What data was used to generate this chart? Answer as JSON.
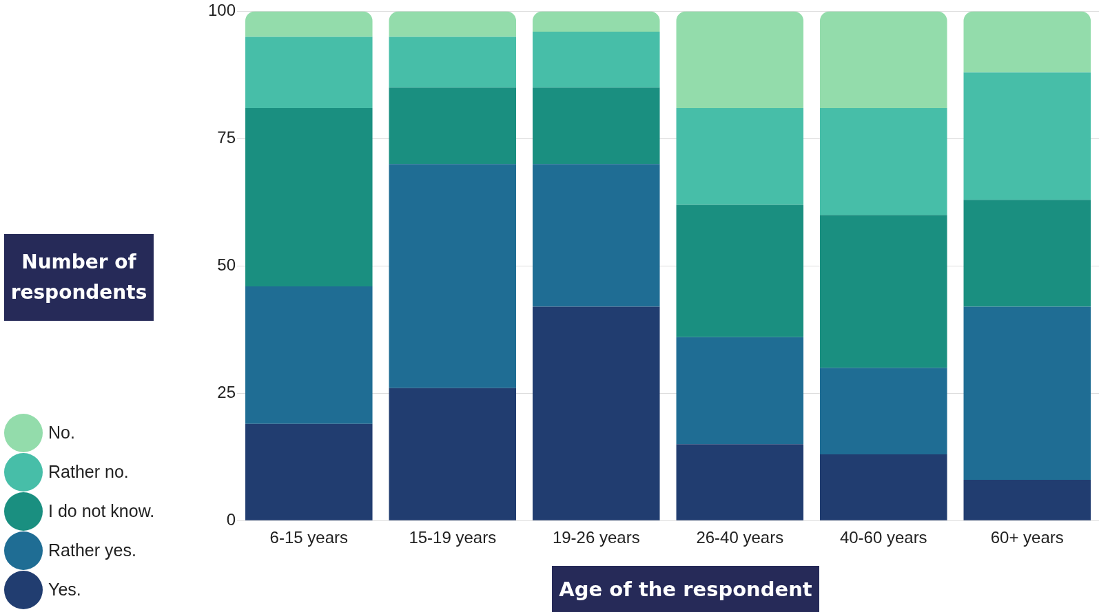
{
  "chart_data": {
    "type": "bar",
    "stacked": true,
    "xlabel": "Age of the respondent",
    "ylabel": "Number of respondents",
    "categories": [
      "6-15 years",
      "15-19 years",
      "19-26 years",
      "26-40 years",
      "40-60 years",
      "60+ years"
    ],
    "series": [
      {
        "name": "Yes.",
        "color": "#213d70",
        "values": [
          19,
          26,
          42,
          15,
          13,
          8
        ]
      },
      {
        "name": "Rather yes.",
        "color": "#1f6d94",
        "values": [
          27,
          44,
          28,
          21,
          17,
          34
        ]
      },
      {
        "name": "I do not know.",
        "color": "#1a8f80",
        "values": [
          35,
          15,
          15,
          26,
          30,
          21
        ]
      },
      {
        "name": "Rather no.",
        "color": "#47bea8",
        "values": [
          14,
          10,
          11,
          19,
          21,
          25
        ]
      },
      {
        "name": "No.",
        "color": "#93dcab",
        "values": [
          5,
          5,
          4,
          19,
          19,
          12
        ]
      }
    ],
    "ylim": [
      0,
      100
    ],
    "yticks": [
      0,
      25,
      50,
      75,
      100
    ],
    "grid": "y",
    "legend": "bottom left"
  }
}
